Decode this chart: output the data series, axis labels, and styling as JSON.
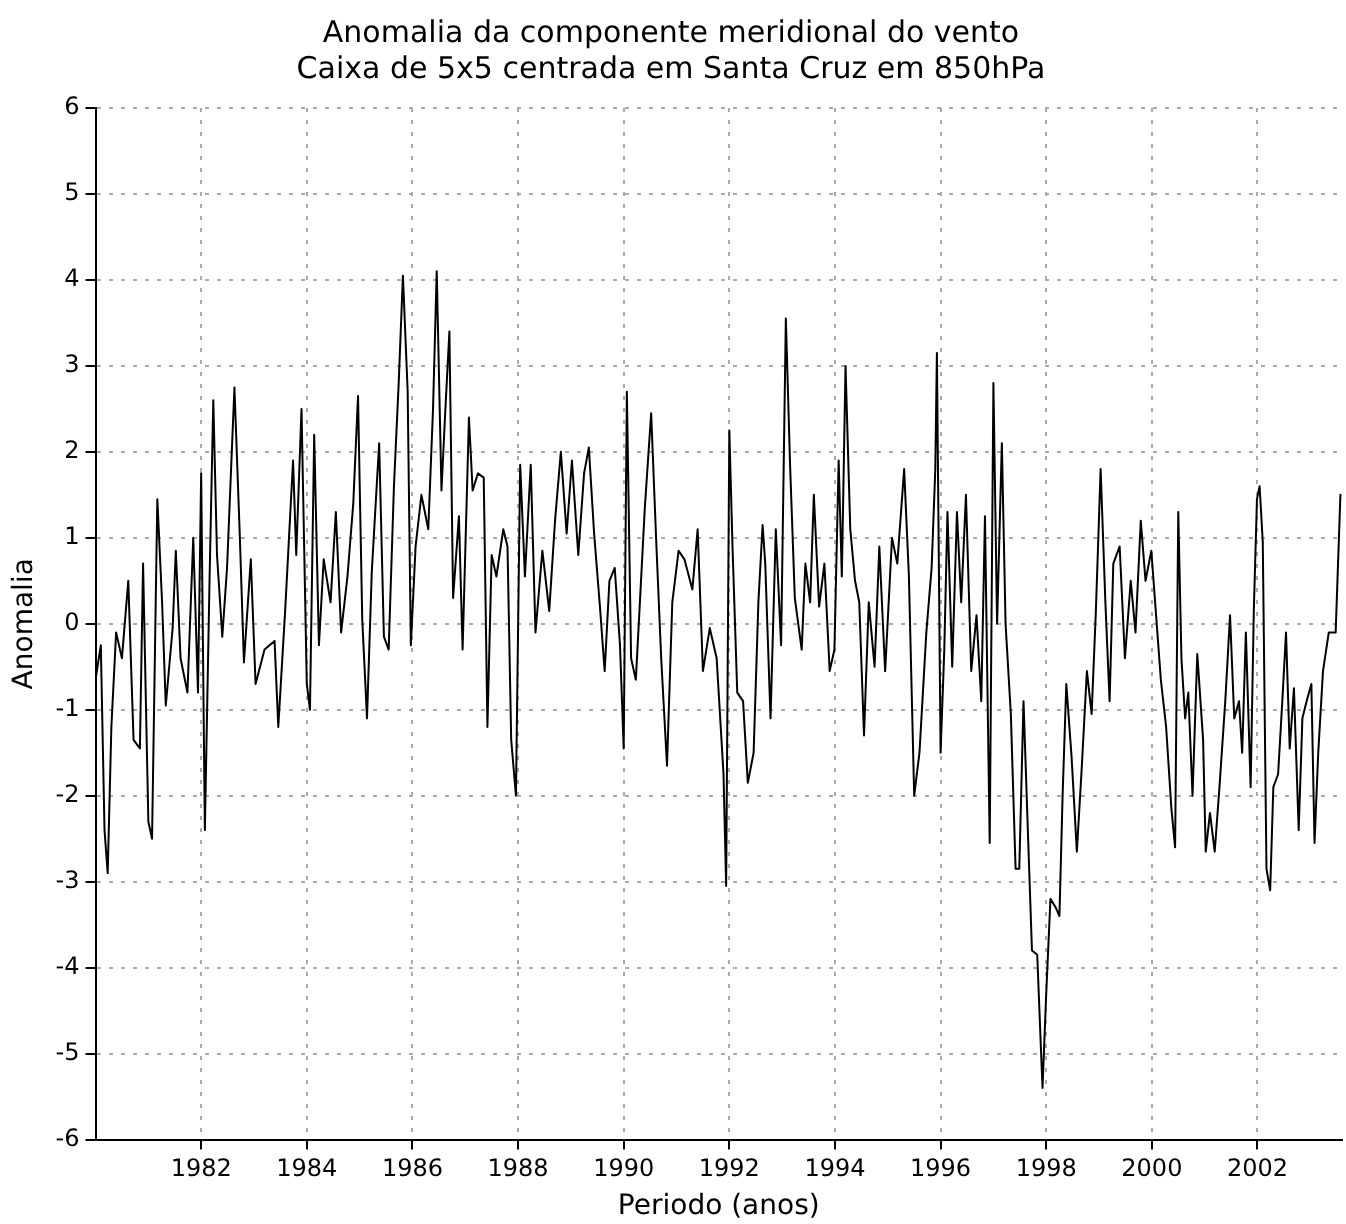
{
  "chart_data": {
    "type": "line",
    "title": "Anomalia da componente meridional do vento",
    "subtitle": "Caixa de 5x5 centrada em Santa Cruz em 850hPa",
    "xlabel": "Periodo (anos)",
    "ylabel": "Anomalia",
    "x": [
      1980.0,
      1980.1,
      1980.17,
      1980.23,
      1980.3,
      1980.39,
      1980.5,
      1980.62,
      1980.72,
      1980.84,
      1980.9,
      1981.0,
      1981.07,
      1981.17,
      1981.26,
      1981.33,
      1981.46,
      1981.52,
      1981.61,
      1981.74,
      1981.85,
      1981.94,
      1982.0,
      1982.07,
      1982.16,
      1982.23,
      1982.3,
      1982.4,
      1982.49,
      1982.63,
      1982.73,
      1982.81,
      1982.94,
      1983.03,
      1983.2,
      1983.39,
      1983.46,
      1983.59,
      1983.74,
      1983.8,
      1983.9,
      1984.0,
      1984.06,
      1984.14,
      1984.23,
      1984.32,
      1984.45,
      1984.55,
      1984.65,
      1984.77,
      1984.88,
      1984.97,
      1985.05,
      1985.14,
      1985.23,
      1985.37,
      1985.46,
      1985.55,
      1985.65,
      1985.74,
      1985.82,
      1985.91,
      1985.97,
      1986.06,
      1986.17,
      1986.3,
      1986.39,
      1986.46,
      1986.55,
      1986.62,
      1986.7,
      1986.77,
      1986.88,
      1986.95,
      1987.07,
      1987.14,
      1987.24,
      1987.35,
      1987.42,
      1987.5,
      1987.59,
      1987.72,
      1987.8,
      1987.87,
      1987.96,
      1988.04,
      1988.13,
      1988.24,
      1988.33,
      1988.46,
      1988.59,
      1988.7,
      1988.81,
      1988.92,
      1989.02,
      1989.14,
      1989.25,
      1989.34,
      1989.44,
      1989.55,
      1989.64,
      1989.73,
      1989.83,
      1989.93,
      1990.0,
      1990.06,
      1990.14,
      1990.23,
      1990.4,
      1990.52,
      1990.62,
      1990.71,
      1990.82,
      1990.92,
      1991.04,
      1991.15,
      1991.3,
      1991.4,
      1991.5,
      1991.63,
      1991.76,
      1991.89,
      1991.94,
      1992.0,
      1992.06,
      1992.15,
      1992.26,
      1992.35,
      1992.46,
      1992.55,
      1992.63,
      1992.68,
      1992.78,
      1992.88,
      1992.98,
      1993.07,
      1993.15,
      1993.24,
      1993.37,
      1993.44,
      1993.53,
      1993.6,
      1993.7,
      1993.8,
      1993.9,
      1993.99,
      1994.07,
      1994.13,
      1994.2,
      1994.29,
      1994.38,
      1994.46,
      1994.55,
      1994.64,
      1994.75,
      1994.84,
      1994.95,
      1995.08,
      1995.18,
      1995.31,
      1995.4,
      1995.5,
      1995.6,
      1995.73,
      1995.83,
      1995.9,
      1995.93,
      1996.0,
      1996.07,
      1996.13,
      1996.22,
      1996.31,
      1996.39,
      1996.48,
      1996.58,
      1996.68,
      1996.77,
      1996.84,
      1996.93,
      1997.0,
      1997.07,
      1997.16,
      1997.23,
      1997.33,
      1997.42,
      1997.49,
      1997.57,
      1997.66,
      1997.73,
      1997.83,
      1997.9,
      1997.93,
      1998.0,
      1998.08,
      1998.18,
      1998.25,
      1998.31,
      1998.38,
      1998.48,
      1998.58,
      1998.67,
      1998.77,
      1998.86,
      1998.94,
      1999.03,
      1999.12,
      1999.2,
      1999.27,
      1999.39,
      1999.49,
      1999.6,
      1999.69,
      1999.79,
      1999.88,
      1999.99,
      2000.08,
      2000.17,
      2000.27,
      2000.37,
      2000.44,
      2000.5,
      2000.56,
      2000.63,
      2000.69,
      2000.77,
      2000.86,
      2000.97,
      2001.02,
      2001.1,
      2001.19,
      2001.28,
      2001.39,
      2001.48,
      2001.56,
      2001.65,
      2001.71,
      2001.78,
      2001.87,
      2001.93,
      2001.99,
      2002.04,
      2002.1,
      2002.17,
      2002.24,
      2002.3,
      2002.39,
      2002.47,
      2002.54,
      2002.61,
      2002.69,
      2002.78,
      2002.85,
      2002.93,
      2003.02,
      2003.08,
      2003.15,
      2003.24,
      2003.35,
      2003.48,
      2003.57
    ],
    "series": [
      {
        "color": "#000000",
        "values": [
          -0.65,
          -0.25,
          -2.4,
          -2.9,
          -1.2,
          -0.1,
          -0.4,
          0.5,
          -1.35,
          -1.45,
          0.7,
          -2.3,
          -2.5,
          1.45,
          0.25,
          -0.95,
          -0.05,
          0.85,
          -0.4,
          -0.8,
          1.0,
          -0.8,
          1.75,
          -2.4,
          0.55,
          2.6,
          0.8,
          -0.15,
          0.65,
          2.75,
          1.05,
          -0.45,
          0.75,
          -0.7,
          -0.3,
          -0.2,
          -1.2,
          0.15,
          1.9,
          0.8,
          2.5,
          -0.7,
          -1.0,
          2.2,
          -0.25,
          0.75,
          0.25,
          1.3,
          -0.1,
          0.55,
          1.4,
          2.65,
          0.05,
          -1.1,
          0.6,
          2.1,
          -0.15,
          -0.3,
          1.6,
          2.8,
          4.05,
          2.7,
          -0.25,
          0.9,
          1.5,
          1.1,
          2.5,
          4.1,
          1.55,
          2.45,
          3.4,
          0.3,
          1.25,
          -0.3,
          2.4,
          1.55,
          1.75,
          1.7,
          -1.2,
          0.8,
          0.55,
          1.1,
          0.9,
          -1.35,
          -2.0,
          1.85,
          0.55,
          1.85,
          -0.1,
          0.85,
          0.15,
          1.2,
          2.0,
          1.05,
          1.9,
          0.8,
          1.75,
          2.05,
          1.05,
          0.2,
          -0.55,
          0.5,
          0.65,
          -0.25,
          -1.45,
          2.7,
          -0.4,
          -0.65,
          1.35,
          2.45,
          0.9,
          -0.4,
          -1.65,
          0.25,
          0.85,
          0.75,
          0.4,
          1.1,
          -0.55,
          -0.05,
          -0.4,
          -1.75,
          -3.05,
          2.25,
          0.9,
          -0.8,
          -0.9,
          -1.85,
          -1.5,
          0.25,
          1.15,
          0.7,
          -1.1,
          1.1,
          -0.25,
          3.55,
          1.85,
          0.3,
          -0.3,
          0.7,
          0.25,
          1.5,
          0.2,
          0.7,
          -0.55,
          -0.3,
          1.9,
          0.55,
          3.0,
          1.1,
          0.5,
          0.25,
          -1.3,
          0.25,
          -0.5,
          0.9,
          -0.55,
          1.0,
          0.7,
          1.8,
          0.55,
          -2.0,
          -1.5,
          -0.1,
          0.65,
          1.8,
          3.15,
          -1.5,
          -0.3,
          1.3,
          -0.5,
          1.3,
          0.25,
          1.5,
          -0.55,
          0.1,
          -0.9,
          1.25,
          -2.55,
          2.8,
          0.0,
          2.1,
          0.0,
          -1.05,
          -2.85,
          -2.85,
          -0.9,
          -2.55,
          -3.8,
          -3.85,
          -4.95,
          -5.4,
          -4.3,
          -3.2,
          -3.3,
          -3.4,
          -2.0,
          -0.7,
          -1.55,
          -2.65,
          -1.7,
          -0.55,
          -1.05,
          0.15,
          1.8,
          0.25,
          -0.9,
          0.7,
          0.9,
          -0.4,
          0.5,
          -0.1,
          1.2,
          0.5,
          0.85,
          0.1,
          -0.65,
          -1.2,
          -2.15,
          -2.6,
          1.3,
          -0.4,
          -1.1,
          -0.8,
          -2.0,
          -0.35,
          -1.35,
          -2.65,
          -2.2,
          -2.65,
          -1.9,
          -0.9,
          0.1,
          -1.1,
          -0.9,
          -1.5,
          -0.1,
          -1.9,
          0.15,
          1.45,
          1.6,
          0.95,
          -2.85,
          -3.1,
          -1.9,
          -1.75,
          -0.9,
          -0.1,
          -1.45,
          -0.75,
          -2.4,
          -1.1,
          -0.9,
          -0.7,
          -2.55,
          -1.5,
          -0.55,
          -0.1,
          -0.1,
          1.5
        ]
      }
    ],
    "xlim": [
      1980,
      2003.6
    ],
    "xticks": [
      1982,
      1984,
      1986,
      1988,
      1990,
      1992,
      1994,
      1996,
      1998,
      2000,
      2002
    ],
    "ylim": [
      -6,
      6
    ],
    "yticks": [
      -6,
      -5,
      -4,
      -3,
      -2,
      -1,
      0,
      1,
      2,
      3,
      4,
      5,
      6
    ],
    "grid": true,
    "legend": false,
    "line_style": "solid",
    "marker": "none"
  }
}
